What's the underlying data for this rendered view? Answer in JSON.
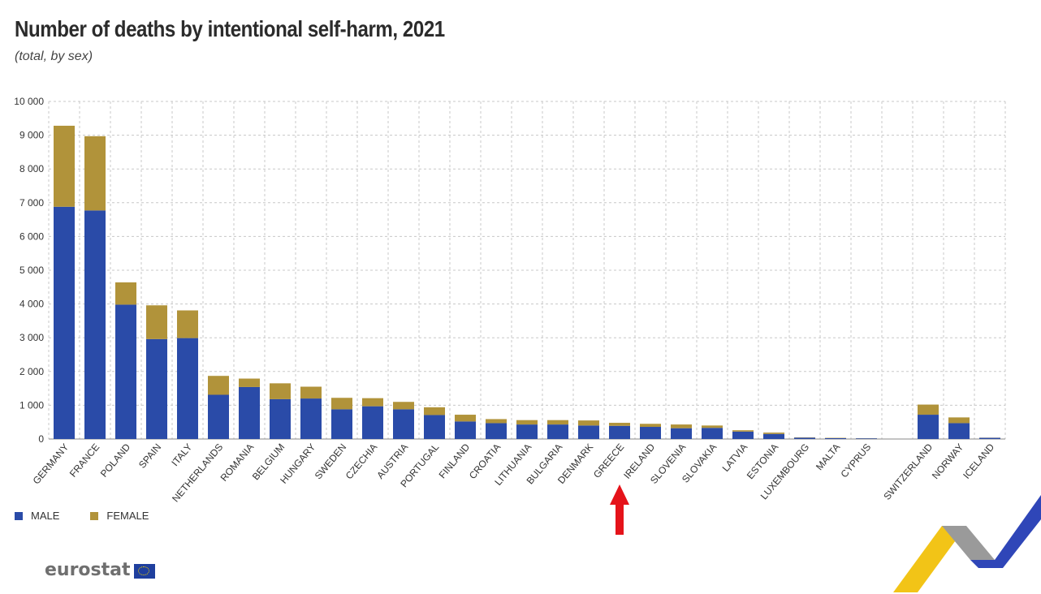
{
  "title": "Number of deaths by intentional self-harm, 2021",
  "subtitle": "(total, by sex)",
  "legend": {
    "male": "MALE",
    "female": "FEMALE"
  },
  "brand": {
    "name": "eurostat"
  },
  "colors": {
    "male": "#2a4ba8",
    "female": "#b1933a",
    "arrow": "#e5131a",
    "grid": "#c8c8c8"
  },
  "chart_data": {
    "type": "bar",
    "stacked": true,
    "ylim": [
      0,
      10000
    ],
    "yticks": [
      0,
      1000,
      2000,
      3000,
      4000,
      5000,
      6000,
      7000,
      8000,
      9000,
      10000
    ],
    "ytick_labels": [
      "0",
      "1 000",
      "2 000",
      "3 000",
      "4 000",
      "5 000",
      "6 000",
      "7 000",
      "8 000",
      "9 000",
      "10 000"
    ],
    "grid": true,
    "legend_position": "bottom-left",
    "categories": [
      "GERMANY",
      "FRANCE",
      "POLAND",
      "SPAIN",
      "ITALY",
      "NETHERLANDS",
      "ROMANIA",
      "BELGIUM",
      "HUNGARY",
      "SWEDEN",
      "CZECHIA",
      "AUSTRIA",
      "PORTUGAL",
      "FINLAND",
      "CROATIA",
      "LITHUANIA",
      "BULGARIA",
      "DENMARK",
      "GREECE",
      "IRELAND",
      "SLOVENIA",
      "SLOVAKIA",
      "LATVIA",
      "ESTONIA",
      "LUXEMBOURG",
      "MALTA",
      "CYPRUS",
      "",
      "SWITZERLAND",
      "NORWAY",
      "ICELAND"
    ],
    "series": [
      {
        "name": "MALE",
        "values": [
          6880,
          6770,
          3980,
          2960,
          2990,
          1310,
          1540,
          1180,
          1200,
          880,
          970,
          880,
          710,
          520,
          470,
          430,
          430,
          400,
          390,
          360,
          320,
          330,
          220,
          150,
          40,
          25,
          20,
          null,
          720,
          470,
          35
        ]
      },
      {
        "name": "FEMALE",
        "values": [
          2400,
          2200,
          660,
          1000,
          820,
          560,
          250,
          470,
          350,
          340,
          240,
          220,
          230,
          200,
          120,
          130,
          130,
          150,
          90,
          90,
          110,
          70,
          40,
          40,
          10,
          10,
          5,
          null,
          300,
          170,
          5
        ]
      }
    ],
    "annotation": {
      "type": "arrow",
      "target": "GREECE"
    }
  }
}
